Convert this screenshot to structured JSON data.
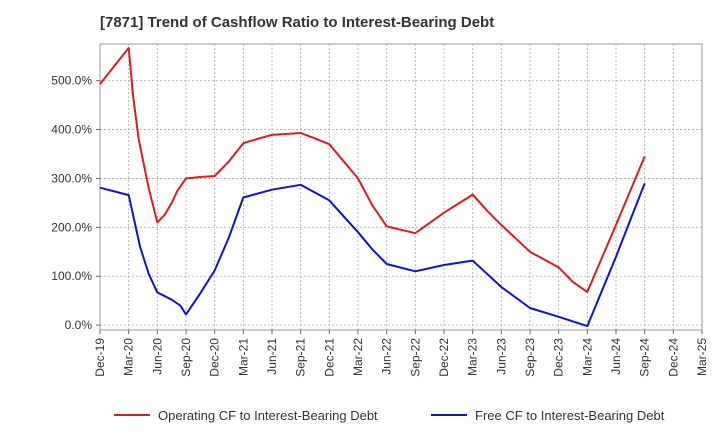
{
  "chart_data": {
    "type": "line",
    "title": "[7871]  Trend of Cashflow Ratio to Interest-Bearing Debt",
    "xlabel": "",
    "ylabel": "",
    "x_ticks": [
      "Dec-19",
      "Mar-20",
      "Jun-20",
      "Sep-20",
      "Dec-20",
      "Mar-21",
      "Jun-21",
      "Sep-21",
      "Dec-21",
      "Mar-22",
      "Jun-22",
      "Sep-22",
      "Dec-22",
      "Mar-23",
      "Jun-23",
      "Sep-23",
      "Dec-23",
      "Mar-24",
      "Jun-24",
      "Sep-24",
      "Dec-24",
      "Mar-25"
    ],
    "y_ticks": [
      "0.0%",
      "100.0%",
      "200.0%",
      "300.0%",
      "400.0%",
      "500.0%"
    ],
    "ylim": [
      -10,
      575
    ],
    "grid": true,
    "legend_position": "bottom",
    "series": [
      {
        "name": "Operating CF to Interest-Bearing Debt",
        "color": "#e31a1c",
        "points": [
          [
            0,
            493
          ],
          [
            0.5,
            530
          ],
          [
            1,
            567
          ],
          [
            1.15,
            470
          ],
          [
            1.35,
            380
          ],
          [
            1.7,
            280
          ],
          [
            2,
            210
          ],
          [
            2.25,
            225
          ],
          [
            2.5,
            250
          ],
          [
            2.7,
            275
          ],
          [
            3,
            300
          ],
          [
            3.5,
            303
          ],
          [
            4,
            305
          ],
          [
            4.5,
            335
          ],
          [
            5,
            372
          ],
          [
            5.5,
            381
          ],
          [
            6,
            389
          ],
          [
            7,
            393
          ],
          [
            7.5,
            382
          ],
          [
            8,
            370
          ],
          [
            8.5,
            335
          ],
          [
            9,
            300
          ],
          [
            9.5,
            245
          ],
          [
            10,
            202
          ],
          [
            11,
            188
          ],
          [
            12,
            230
          ],
          [
            13,
            267
          ],
          [
            13.5,
            234
          ],
          [
            14,
            205
          ],
          [
            15,
            150
          ],
          [
            16,
            118
          ],
          [
            16.5,
            88
          ],
          [
            17,
            68
          ],
          [
            18,
            205
          ],
          [
            19,
            345
          ]
        ]
      },
      {
        "name": "Free CF to Interest-Bearing Debt",
        "color": "#0a14d4",
        "points": [
          [
            0,
            281
          ],
          [
            1,
            266
          ],
          [
            1.4,
            160
          ],
          [
            1.7,
            105
          ],
          [
            2,
            67
          ],
          [
            2.5,
            52
          ],
          [
            2.8,
            40
          ],
          [
            3,
            22
          ],
          [
            3.5,
            65
          ],
          [
            4,
            112
          ],
          [
            4.5,
            180
          ],
          [
            5,
            261
          ],
          [
            6,
            277
          ],
          [
            7,
            287
          ],
          [
            8,
            255
          ],
          [
            9,
            190
          ],
          [
            9.5,
            155
          ],
          [
            10,
            125
          ],
          [
            11,
            110
          ],
          [
            12,
            123
          ],
          [
            13,
            132
          ],
          [
            13.5,
            105
          ],
          [
            14,
            78
          ],
          [
            15,
            35
          ],
          [
            16,
            17
          ],
          [
            17,
            -2
          ],
          [
            18,
            140
          ],
          [
            19,
            290
          ]
        ]
      }
    ]
  }
}
